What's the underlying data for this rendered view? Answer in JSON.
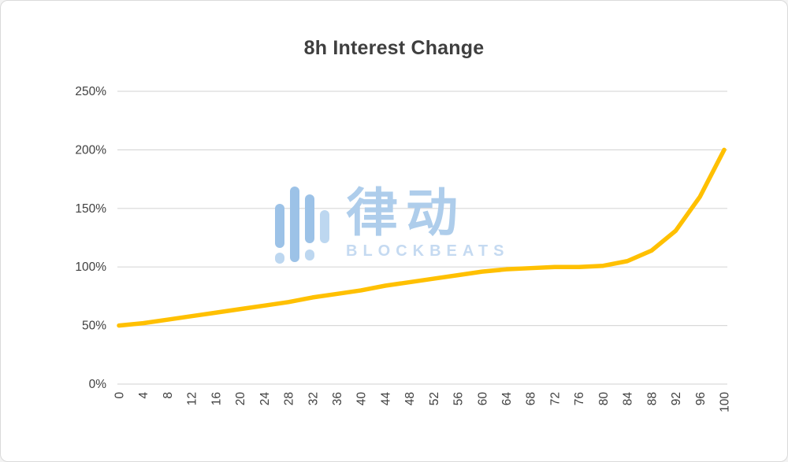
{
  "chart_data": {
    "type": "line",
    "title": "8h Interest Change",
    "x": [
      0,
      4,
      8,
      12,
      16,
      20,
      24,
      28,
      32,
      36,
      40,
      44,
      48,
      52,
      56,
      60,
      64,
      68,
      72,
      76,
      80,
      84,
      88,
      92,
      96,
      100
    ],
    "values": [
      50,
      52,
      55,
      58,
      61,
      64,
      67,
      70,
      74,
      77,
      80,
      84,
      87,
      90,
      93,
      96,
      98,
      99,
      100,
      100,
      101,
      105,
      114,
      131,
      160,
      200
    ],
    "xlim": [
      0,
      100
    ],
    "ylim": [
      0,
      250
    ],
    "yticks": [
      0,
      50,
      100,
      150,
      200,
      250
    ],
    "ytick_labels": [
      "0%",
      "50%",
      "100%",
      "150%",
      "200%",
      "250%"
    ],
    "line_color": "#FFC000",
    "grid_color": "#D9D9D9",
    "label_color": "#404040",
    "grid": true,
    "legend_position": "none",
    "x_tick_rotation": -90
  },
  "watermark": {
    "text": "律动",
    "subtext": "BLOCKBEATS",
    "logo_color_dark": "#9cc2e7",
    "logo_color_light": "#bdd7f0"
  }
}
